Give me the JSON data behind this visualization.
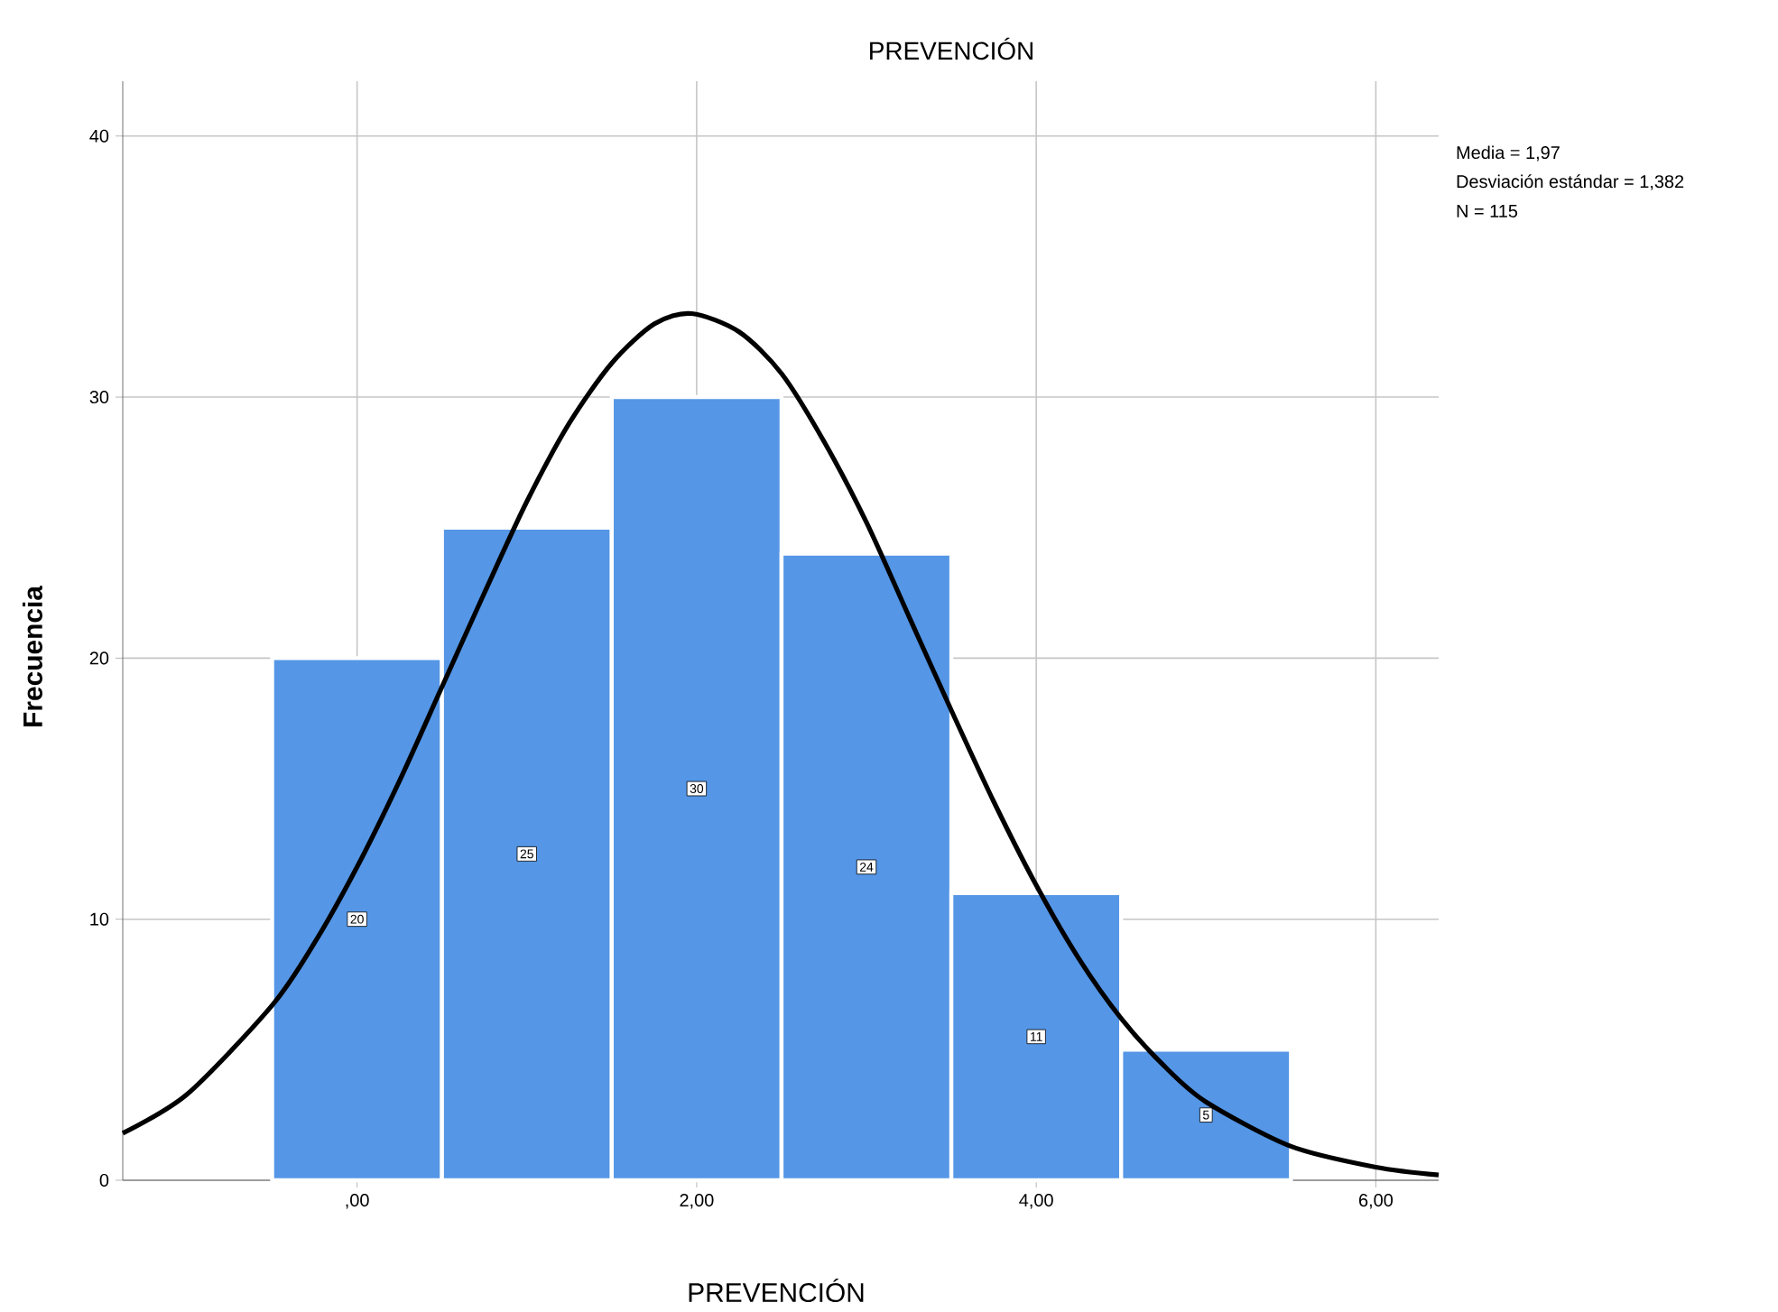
{
  "chart_data": {
    "type": "histogram",
    "title": "PREVENCIÓN",
    "xlabel": "PREVENCIÓN",
    "ylabel": "Frecuencia",
    "annotations": [
      "Media = 1,97",
      "Desviación estándar = 1,382",
      "N = 115"
    ],
    "bins": [
      -0.5,
      0.5,
      1.5,
      2.5,
      3.5,
      4.5,
      5.5
    ],
    "values": [
      20,
      25,
      30,
      24,
      11,
      5
    ],
    "color": "#5596e6",
    "value_labels": [
      "20",
      "25",
      "30",
      "24",
      "11",
      "5"
    ],
    "series": [
      {
        "type": "line",
        "color": "#000000",
        "x": [
          -1.38,
          -1,
          -0.5,
          -0.25,
          0,
          0.25,
          0.5,
          0.75,
          1,
          1.25,
          1.5,
          1.75,
          1.97,
          2.25,
          2.5,
          2.75,
          3,
          3.25,
          3.5,
          3.75,
          4,
          4.25,
          4.5,
          4.75,
          5,
          5.5,
          6,
          6.37
        ],
        "values": [
          1.8,
          3.3,
          6.7,
          9.1,
          12.0,
          15.3,
          18.9,
          22.5,
          26.0,
          29.0,
          31.3,
          32.8,
          33.2,
          32.5,
          30.9,
          28.3,
          25.2,
          21.6,
          18.0,
          14.5,
          11.3,
          8.5,
          6.2,
          4.4,
          3.0,
          1.3,
          0.5,
          0.2
        ]
      }
    ],
    "xlim": [
      -1.38,
      6.37
    ],
    "ylim": [
      0,
      42.1
    ],
    "xticks": [
      {
        "value": 0,
        "label": ",00"
      },
      {
        "value": 2,
        "label": "2,00"
      },
      {
        "value": 4,
        "label": "4,00"
      },
      {
        "value": 6,
        "label": "6,00"
      }
    ],
    "yticks": [
      0,
      10,
      20,
      30,
      40
    ],
    "grid": true
  }
}
